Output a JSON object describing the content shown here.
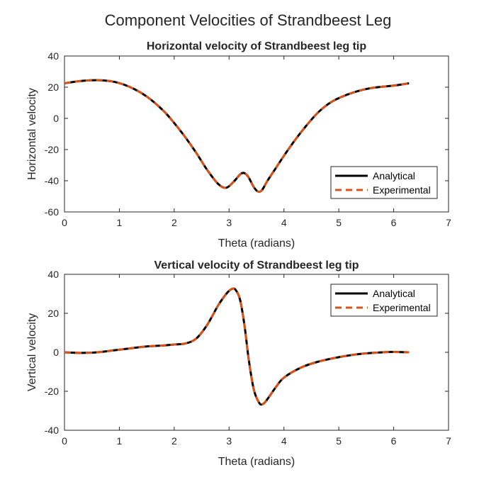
{
  "figure": {
    "title": "Component Velocities of Strandbeest Leg"
  },
  "chart_data": [
    {
      "type": "line",
      "title": "Horizontal velocity of Strandbeest leg tip",
      "xlabel": "Theta (radians)",
      "ylabel": "Horizontal velocity",
      "xlim": [
        0,
        7
      ],
      "ylim": [
        -60,
        40
      ],
      "xticks": [
        "0",
        "1",
        "2",
        "3",
        "4",
        "5",
        "6",
        "7"
      ],
      "yticks": [
        "-60",
        "-40",
        "-20",
        "0",
        "20",
        "40"
      ],
      "legend_position": "bottom-right",
      "series": [
        {
          "name": "Analytical",
          "color": "#000000",
          "style": "solid",
          "x": [
            0,
            0.3,
            0.6,
            0.9,
            1.2,
            1.5,
            1.8,
            2.0,
            2.2,
            2.4,
            2.6,
            2.8,
            2.95,
            3.1,
            3.2,
            3.27,
            3.35,
            3.45,
            3.53,
            3.6,
            3.7,
            3.85,
            4.0,
            4.2,
            4.4,
            4.6,
            4.8,
            5.0,
            5.3,
            5.6,
            6.0,
            6.28
          ],
          "y": [
            22.5,
            24,
            24.5,
            23.5,
            20,
            14,
            5,
            -3,
            -12,
            -22,
            -33,
            -42,
            -44.5,
            -40,
            -36,
            -35,
            -37.5,
            -44,
            -47,
            -46,
            -40,
            -32,
            -24,
            -14,
            -5,
            3,
            9,
            13,
            17,
            19.5,
            21,
            22.5
          ]
        },
        {
          "name": "Experimental",
          "color": "#D95319",
          "style": "dashed",
          "x": [
            0,
            0.3,
            0.6,
            0.9,
            1.2,
            1.5,
            1.8,
            2.0,
            2.2,
            2.4,
            2.6,
            2.8,
            2.95,
            3.1,
            3.2,
            3.27,
            3.35,
            3.45,
            3.53,
            3.6,
            3.7,
            3.85,
            4.0,
            4.2,
            4.4,
            4.6,
            4.8,
            5.0,
            5.3,
            5.6,
            6.0,
            6.28
          ],
          "y": [
            22.5,
            24,
            24.5,
            23.5,
            20,
            14,
            5,
            -3,
            -12,
            -22,
            -33,
            -42,
            -44.5,
            -40,
            -36,
            -35,
            -37.5,
            -44,
            -47,
            -46,
            -40,
            -32,
            -24,
            -14,
            -5,
            3,
            9,
            13,
            17,
            19.5,
            21,
            22.5
          ]
        }
      ]
    },
    {
      "type": "line",
      "title": "Vertical velocity of Strandbeest leg tip",
      "xlabel": "Theta (radians)",
      "ylabel": "Vertical velocity",
      "xlim": [
        0,
        7
      ],
      "ylim": [
        -40,
        40
      ],
      "xticks": [
        "0",
        "1",
        "2",
        "3",
        "4",
        "5",
        "6",
        "7"
      ],
      "yticks": [
        "-40",
        "-20",
        "0",
        "20",
        "40"
      ],
      "legend_position": "top-right",
      "series": [
        {
          "name": "Analytical",
          "color": "#000000",
          "style": "solid",
          "x": [
            0,
            0.3,
            0.6,
            0.9,
            1.2,
            1.5,
            1.8,
            2.0,
            2.2,
            2.4,
            2.6,
            2.8,
            2.95,
            3.05,
            3.12,
            3.2,
            3.28,
            3.36,
            3.45,
            3.55,
            3.62,
            3.7,
            3.85,
            4.0,
            4.3,
            4.6,
            5.0,
            5.4,
            5.8,
            6.0,
            6.28
          ],
          "y": [
            0,
            -0.3,
            0,
            1,
            2,
            3,
            3.5,
            4,
            4.5,
            7,
            14,
            24,
            30,
            32.5,
            32,
            27,
            14,
            -4,
            -19,
            -26,
            -26.5,
            -24,
            -18,
            -13,
            -8,
            -5,
            -2.5,
            -0.8,
            0,
            0.2,
            0
          ]
        },
        {
          "name": "Experimental",
          "color": "#D95319",
          "style": "dashed",
          "x": [
            0,
            0.3,
            0.6,
            0.9,
            1.2,
            1.5,
            1.8,
            2.0,
            2.2,
            2.4,
            2.6,
            2.8,
            2.95,
            3.05,
            3.12,
            3.2,
            3.28,
            3.36,
            3.45,
            3.55,
            3.62,
            3.7,
            3.85,
            4.0,
            4.3,
            4.6,
            5.0,
            5.4,
            5.8,
            6.0,
            6.28
          ],
          "y": [
            0,
            -0.3,
            0,
            1,
            2,
            3,
            3.5,
            4,
            4.5,
            7,
            14,
            24,
            30,
            32.5,
            32,
            27,
            14,
            -4,
            -19,
            -26,
            -26.5,
            -24,
            -18,
            -13,
            -8,
            -5,
            -2.5,
            -0.8,
            0,
            0.2,
            0
          ]
        }
      ]
    }
  ]
}
